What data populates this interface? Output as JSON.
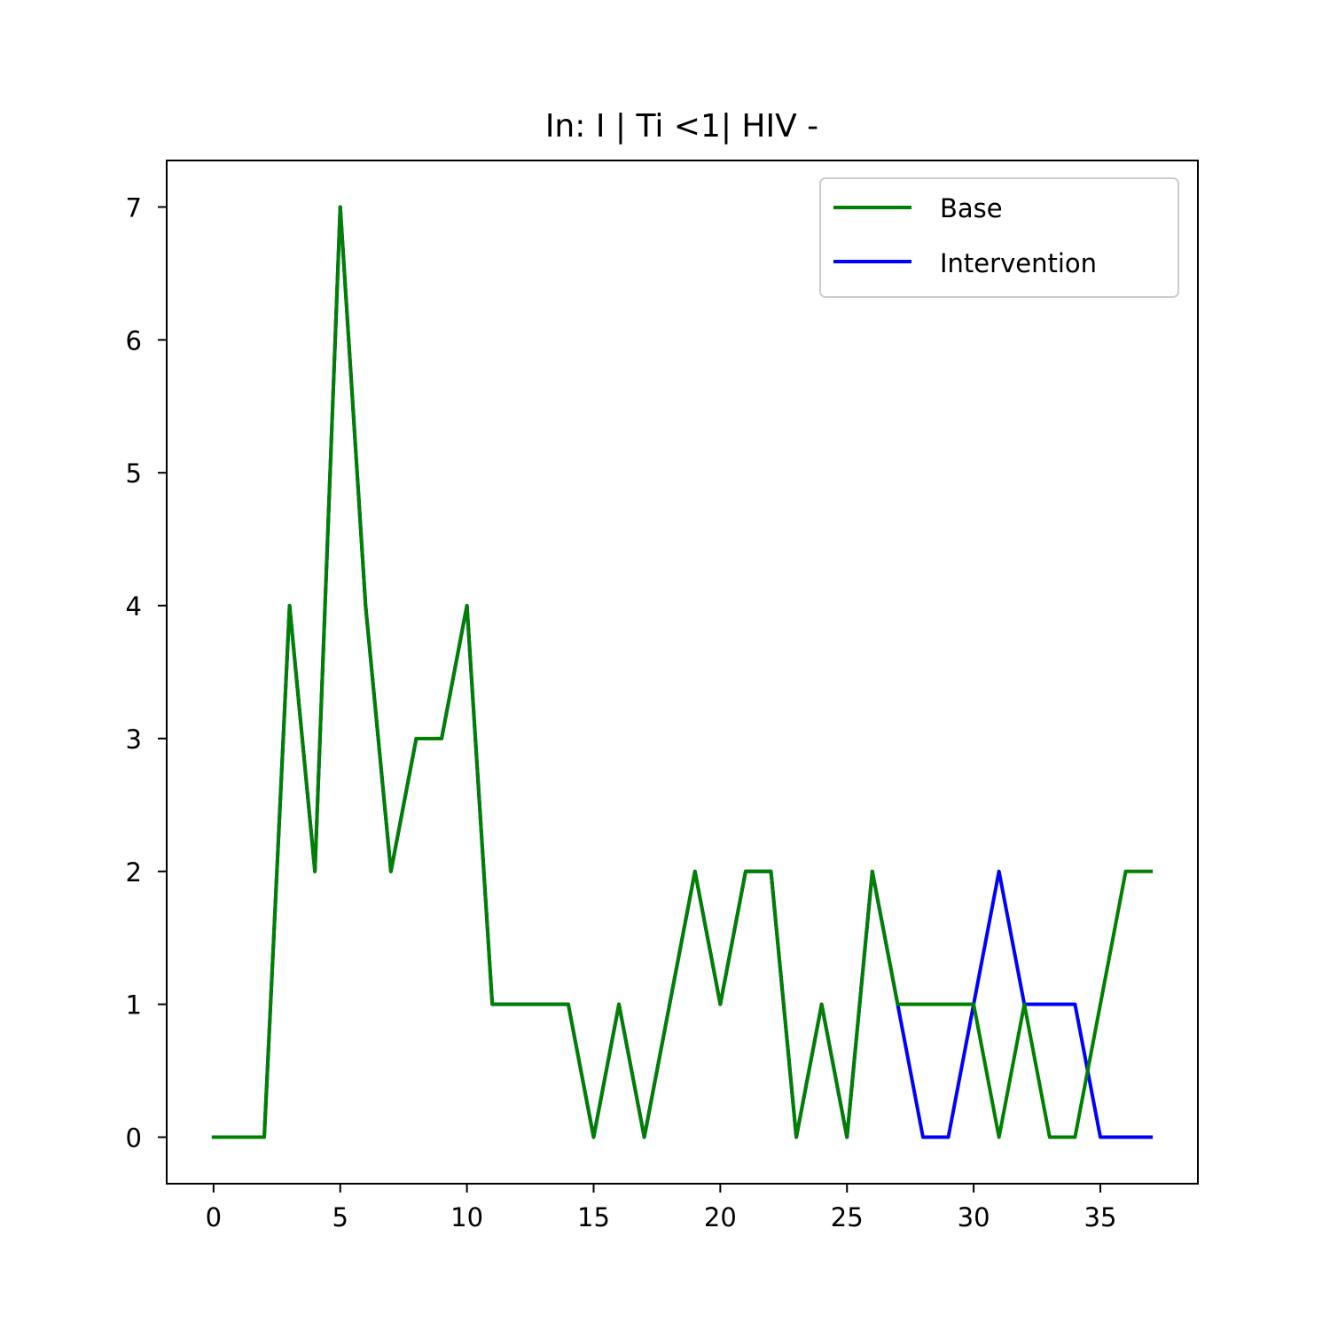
{
  "chart_data": {
    "type": "line",
    "title": "In: I | Ti <1| HIV -",
    "xlabel": "",
    "ylabel": "",
    "xlim": [
      -1.85,
      38.85
    ],
    "ylim": [
      -0.35,
      7.35
    ],
    "xticks": [
      0,
      5,
      10,
      15,
      20,
      25,
      30,
      35
    ],
    "yticks": [
      0,
      1,
      2,
      3,
      4,
      5,
      6,
      7
    ],
    "grid": false,
    "legend_position": "top-right",
    "series": [
      {
        "name": "Intervention",
        "color": "#0000ff",
        "x": [
          0,
          1,
          2,
          3,
          4,
          5,
          6,
          7,
          8,
          9,
          10,
          11,
          12,
          13,
          14,
          15,
          16,
          17,
          18,
          19,
          20,
          21,
          22,
          23,
          24,
          25,
          26,
          27,
          28,
          29,
          30,
          31,
          32,
          33,
          34,
          35,
          36,
          37
        ],
        "y": [
          0,
          0,
          0,
          4,
          2,
          7,
          4,
          2,
          3,
          3,
          4,
          1,
          1,
          1,
          1,
          0,
          1,
          0,
          1,
          2,
          1,
          2,
          2,
          0,
          1,
          0,
          2,
          1,
          0,
          0,
          1,
          2,
          1,
          1,
          1,
          0,
          0,
          0
        ]
      },
      {
        "name": "Base",
        "color": "#008000",
        "x": [
          0,
          1,
          2,
          3,
          4,
          5,
          6,
          7,
          8,
          9,
          10,
          11,
          12,
          13,
          14,
          15,
          16,
          17,
          18,
          19,
          20,
          21,
          22,
          23,
          24,
          25,
          26,
          27,
          28,
          29,
          30,
          31,
          32,
          33,
          34,
          35,
          36,
          37
        ],
        "y": [
          0,
          0,
          0,
          4,
          2,
          7,
          4,
          2,
          3,
          3,
          4,
          1,
          1,
          1,
          1,
          0,
          1,
          0,
          1,
          2,
          1,
          2,
          2,
          0,
          1,
          0,
          2,
          1,
          1,
          1,
          1,
          0,
          1,
          0,
          0,
          1,
          2,
          2
        ]
      }
    ],
    "legend": [
      {
        "label": "Base",
        "color": "#008000"
      },
      {
        "label": "Intervention",
        "color": "#0000ff"
      }
    ]
  }
}
